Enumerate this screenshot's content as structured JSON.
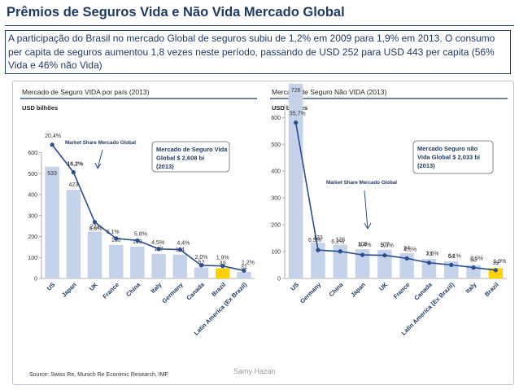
{
  "title": "Prêmios de Seguros Vida e Não Vida Mercado Global",
  "intro": "A participação do Brasil no mercado Global de seguros subiu de 1,2% em 2009 para 1,9% em 2013. O consumo per capita de seguros aumentou  1,8 vezes neste período, passando de USD 252 para USD 443 per capita (56% Vida e 46% não Vida)",
  "source": "Source:   Swiss Re, Munich Re Econimic Research, IMF",
  "author": "Samy Hazan",
  "colors": {
    "bar": "#c5d3ea",
    "bar_highlight": "#ffd200",
    "line": "#2a4d8f",
    "text": "#1f3b63"
  },
  "chart_data": [
    {
      "type": "bar",
      "title": "Mercado de Seguro VIDA por país   (2013)",
      "unit_label": "USD bilhões",
      "categories": [
        "US",
        "Japan",
        "UK",
        "France",
        "China",
        "Italy",
        "Germany",
        "Canada",
        "Brazil",
        "Latin America (Ex Brazil)"
      ],
      "values": [
        533,
        423,
        223,
        160,
        152,
        117,
        114,
        52,
        49,
        31
      ],
      "value_labels": [
        "533",
        "423",
        "223",
        "160",
        "152",
        "117",
        "114",
        "52",
        "49",
        "31"
      ],
      "share_labels": [
        "20,4%",
        "16,2%",
        "8,6%",
        "6,1%",
        "5,8%",
        "4,5%",
        "4,4%",
        "2,0%",
        "1,9%",
        "1,2%"
      ],
      "share_values": [
        20.4,
        16.2,
        8.6,
        6.1,
        5.8,
        4.5,
        4.4,
        2.0,
        1.9,
        1.2
      ],
      "highlight": "Brazil",
      "ylim": [
        0,
        600
      ],
      "yticks": [
        "0",
        "100",
        "200",
        "300",
        "400",
        "500",
        "600"
      ],
      "line_label": "Market Share Mercado Global",
      "callout": "Mercado de Seguro Vida Global $ 2,608 bi (2013)",
      "grid": false
    },
    {
      "type": "bar",
      "title": "Mercado de Seguro Não VIDA  (2013)",
      "unit_label": "USD bilhões",
      "categories": [
        "US",
        "Germany",
        "China",
        "Japan",
        "UK",
        "France",
        "Canada",
        "Latin America (Ex Brazil)",
        "Italy",
        "Brazil"
      ],
      "values": [
        726,
        133,
        126,
        109,
        107,
        94,
        73,
        64,
        50,
        39
      ],
      "value_labels": [
        "726",
        "133",
        "126",
        "109",
        "107",
        "94",
        "73",
        "64",
        "50",
        "39"
      ],
      "share_labels": [
        "35,7%",
        "6,5%",
        "6,2%",
        "5,4%",
        "5,3%",
        "4,6%",
        "3,6%",
        "3,1%",
        "2,5%",
        "1,9%"
      ],
      "share_values": [
        35.7,
        6.5,
        6.2,
        5.4,
        5.3,
        4.6,
        3.6,
        3.1,
        2.5,
        1.9
      ],
      "highlight": "Brazil",
      "ylim": [
        0,
        650
      ],
      "yticks": [
        "0",
        "100",
        "200",
        "300",
        "400",
        "500",
        "600"
      ],
      "line_label": "Market Share Mercado Global",
      "callout": "Mercado Seguro não Vida Global $ 2,033 bi (2013)",
      "grid": false
    }
  ]
}
